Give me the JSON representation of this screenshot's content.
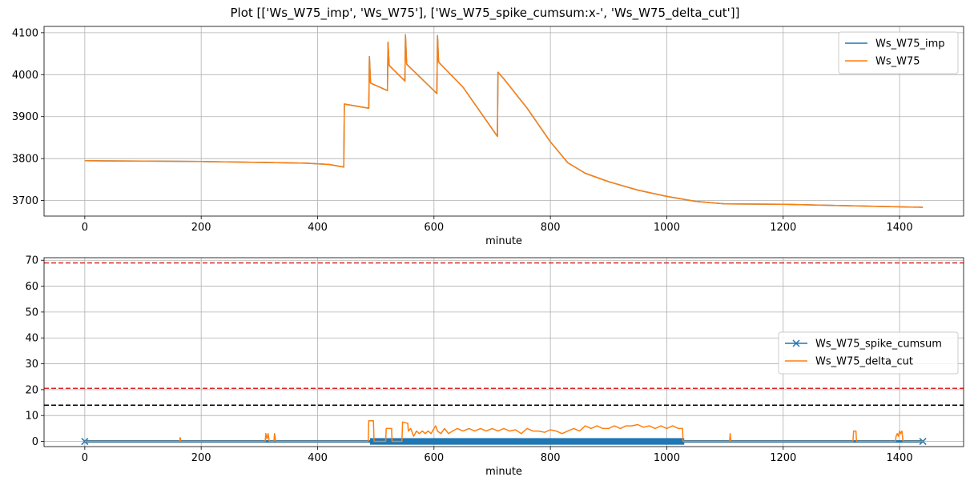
{
  "figure": {
    "title": "Plot [['Ws_W75_imp', 'Ws_W75'], ['Ws_W75_spike_cumsum:x-', 'Ws_W75_delta_cut']]"
  },
  "chart_data": [
    {
      "type": "line",
      "xlabel": "minute",
      "ylabel": "",
      "xlim": [
        -70,
        1510
      ],
      "ylim": [
        3663,
        4115
      ],
      "xticks": [
        0,
        200,
        400,
        600,
        800,
        1000,
        1200,
        1400
      ],
      "yticks": [
        3700,
        3800,
        3900,
        4000,
        4100
      ],
      "grid": true,
      "legend": "top-right",
      "colors": {
        "Ws_W75_imp": "#1f77b4",
        "Ws_W75": "#ff7f0e"
      },
      "series": [
        {
          "name": "Ws_W75_imp",
          "points": [
            [
              0,
              3795
            ],
            [
              100,
              3794
            ],
            [
              200,
              3793
            ],
            [
              300,
              3791
            ],
            [
              380,
              3789
            ],
            [
              420,
              3786
            ],
            [
              445,
              3780
            ],
            [
              446,
              3930
            ],
            [
              488,
              3920
            ],
            [
              489,
              4043
            ],
            [
              491,
              3980
            ],
            [
              520,
              3962
            ],
            [
              521,
              4077
            ],
            [
              523,
              4022
            ],
            [
              550,
              3985
            ],
            [
              551,
              4095
            ],
            [
              553,
              4025
            ],
            [
              605,
              3955
            ],
            [
              606,
              4093
            ],
            [
              608,
              4030
            ],
            [
              650,
              3970
            ],
            [
              709,
              3853
            ],
            [
              710,
              4006
            ],
            [
              720,
              3990
            ],
            [
              760,
              3920
            ],
            [
              800,
              3840
            ],
            [
              830,
              3790
            ],
            [
              860,
              3765
            ],
            [
              900,
              3745
            ],
            [
              950,
              3725
            ],
            [
              1000,
              3710
            ],
            [
              1050,
              3698
            ],
            [
              1100,
              3692
            ],
            [
              1200,
              3691
            ],
            [
              1300,
              3688
            ],
            [
              1440,
              3684
            ]
          ]
        },
        {
          "name": "Ws_W75",
          "points": [
            [
              0,
              3795
            ],
            [
              100,
              3794
            ],
            [
              200,
              3793
            ],
            [
              300,
              3791
            ],
            [
              380,
              3789
            ],
            [
              420,
              3786
            ],
            [
              445,
              3780
            ],
            [
              446,
              3930
            ],
            [
              488,
              3920
            ],
            [
              489,
              4043
            ],
            [
              491,
              3980
            ],
            [
              520,
              3962
            ],
            [
              521,
              4077
            ],
            [
              523,
              4022
            ],
            [
              550,
              3985
            ],
            [
              551,
              4095
            ],
            [
              553,
              4025
            ],
            [
              605,
              3955
            ],
            [
              606,
              4093
            ],
            [
              608,
              4030
            ],
            [
              650,
              3970
            ],
            [
              709,
              3853
            ],
            [
              710,
              4006
            ],
            [
              720,
              3990
            ],
            [
              760,
              3920
            ],
            [
              800,
              3840
            ],
            [
              830,
              3790
            ],
            [
              860,
              3765
            ],
            [
              900,
              3745
            ],
            [
              950,
              3725
            ],
            [
              1000,
              3710
            ],
            [
              1050,
              3698
            ],
            [
              1100,
              3692
            ],
            [
              1200,
              3691
            ],
            [
              1300,
              3688
            ],
            [
              1440,
              3684
            ]
          ]
        }
      ]
    },
    {
      "type": "line",
      "xlabel": "minute",
      "ylabel": "",
      "xlim": [
        -70,
        1510
      ],
      "ylim": [
        -2,
        71
      ],
      "xticks": [
        0,
        200,
        400,
        600,
        800,
        1000,
        1200,
        1400
      ],
      "yticks": [
        0,
        10,
        20,
        30,
        40,
        50,
        60,
        70
      ],
      "grid": true,
      "legend": "center-right",
      "colors": {
        "Ws_W75_spike_cumsum": "#1f77b4",
        "Ws_W75_delta_cut": "#ff7f0e"
      },
      "hlines": [
        {
          "y": 69,
          "color": "#d62728",
          "style": "dashed"
        },
        {
          "y": 20.5,
          "color": "#d62728",
          "style": "dashed"
        },
        {
          "y": 14,
          "color": "#000000",
          "style": "dashed"
        }
      ],
      "series": [
        {
          "name": "Ws_W75_spike_cumsum",
          "marker": "x",
          "band": [
            -0.5,
            0.5
          ],
          "x_range": [
            0,
            1440
          ],
          "thick_range": [
            490,
            1030
          ]
        },
        {
          "name": "Ws_W75_delta_cut",
          "points": [
            [
              0,
              0
            ],
            [
              163,
              0
            ],
            [
              164,
              1.5
            ],
            [
              165,
              0
            ],
            [
              310,
              0
            ],
            [
              311,
              3
            ],
            [
              313,
              1
            ],
            [
              315,
              3
            ],
            [
              317,
              0
            ],
            [
              325,
              0
            ],
            [
              326,
              3
            ],
            [
              328,
              0
            ],
            [
              487,
              0
            ],
            [
              488,
              8
            ],
            [
              496,
              8
            ],
            [
              497,
              0
            ],
            [
              517,
              0
            ],
            [
              518,
              5
            ],
            [
              527,
              5
            ],
            [
              528,
              0
            ],
            [
              545,
              0
            ],
            [
              546,
              7.5
            ],
            [
              555,
              7
            ],
            [
              556,
              4
            ],
            [
              560,
              5
            ],
            [
              565,
              2
            ],
            [
              570,
              4
            ],
            [
              575,
              3
            ],
            [
              580,
              4
            ],
            [
              585,
              3
            ],
            [
              590,
              4
            ],
            [
              595,
              3
            ],
            [
              600,
              5
            ],
            [
              603,
              6
            ],
            [
              606,
              4
            ],
            [
              612,
              3
            ],
            [
              618,
              5
            ],
            [
              625,
              3
            ],
            [
              632,
              4
            ],
            [
              640,
              5
            ],
            [
              650,
              4
            ],
            [
              660,
              5
            ],
            [
              670,
              4
            ],
            [
              680,
              5
            ],
            [
              690,
              4
            ],
            [
              700,
              5
            ],
            [
              710,
              4
            ],
            [
              720,
              5
            ],
            [
              730,
              4
            ],
            [
              740,
              4.5
            ],
            [
              750,
              3
            ],
            [
              760,
              5
            ],
            [
              770,
              4
            ],
            [
              780,
              4
            ],
            [
              790,
              3.5
            ],
            [
              800,
              4.5
            ],
            [
              810,
              4
            ],
            [
              820,
              3
            ],
            [
              830,
              4
            ],
            [
              840,
              5
            ],
            [
              850,
              4
            ],
            [
              860,
              6
            ],
            [
              870,
              5
            ],
            [
              880,
              6
            ],
            [
              890,
              5
            ],
            [
              900,
              5
            ],
            [
              910,
              6
            ],
            [
              920,
              5
            ],
            [
              930,
              6
            ],
            [
              940,
              6
            ],
            [
              950,
              6.5
            ],
            [
              960,
              5.5
            ],
            [
              970,
              6
            ],
            [
              980,
              5
            ],
            [
              990,
              6
            ],
            [
              1000,
              5
            ],
            [
              1010,
              6
            ],
            [
              1020,
              5
            ],
            [
              1027,
              5
            ],
            [
              1028,
              0
            ],
            [
              1108,
              0
            ],
            [
              1109,
              3
            ],
            [
              1110,
              0
            ],
            [
              1320,
              0
            ],
            [
              1321,
              4
            ],
            [
              1325,
              4
            ],
            [
              1326,
              0
            ],
            [
              1393,
              0
            ],
            [
              1394,
              2
            ],
            [
              1396,
              3
            ],
            [
              1398,
              2
            ],
            [
              1400,
              4
            ],
            [
              1402,
              3
            ],
            [
              1404,
              4
            ],
            [
              1406,
              0
            ],
            [
              1440,
              0
            ]
          ]
        }
      ]
    }
  ]
}
